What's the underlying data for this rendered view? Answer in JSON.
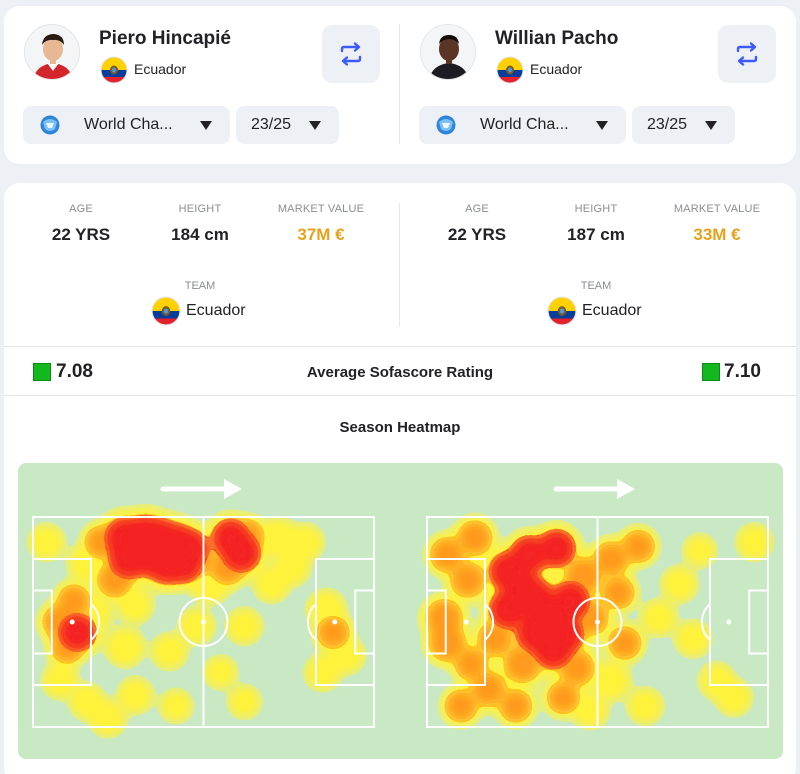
{
  "players": [
    {
      "name": "Piero Hincapié",
      "country": "Ecuador",
      "competition": "World Cha...",
      "season": "23/25",
      "age_label": "AGE",
      "age": "22 YRS",
      "height_label": "HEIGHT",
      "height": "184 cm",
      "market_value_label": "MARKET VALUE",
      "market_value": "37M €",
      "team_label": "TEAM",
      "team": "Ecuador",
      "rating": "7.08",
      "heatmap_points": [
        [
          0.27,
          0.1,
          1.0
        ],
        [
          0.33,
          0.09,
          1.0
        ],
        [
          0.37,
          0.1,
          0.9
        ],
        [
          0.42,
          0.13,
          1.0
        ],
        [
          0.46,
          0.15,
          0.8
        ],
        [
          0.28,
          0.2,
          0.9
        ],
        [
          0.33,
          0.18,
          1.0
        ],
        [
          0.39,
          0.22,
          1.0
        ],
        [
          0.44,
          0.22,
          0.9
        ],
        [
          0.48,
          0.2,
          0.6
        ],
        [
          0.58,
          0.1,
          0.8
        ],
        [
          0.61,
          0.17,
          0.9
        ],
        [
          0.57,
          0.24,
          0.6
        ],
        [
          0.63,
          0.09,
          0.5
        ],
        [
          0.2,
          0.12,
          0.5
        ],
        [
          0.16,
          0.22,
          0.4
        ],
        [
          0.24,
          0.3,
          0.6
        ],
        [
          0.52,
          0.32,
          0.4
        ],
        [
          0.72,
          0.1,
          0.4
        ],
        [
          0.8,
          0.12,
          0.3
        ],
        [
          0.12,
          0.4,
          0.5
        ],
        [
          0.08,
          0.5,
          0.6
        ],
        [
          0.13,
          0.55,
          0.8
        ],
        [
          0.1,
          0.62,
          0.5
        ],
        [
          0.18,
          0.46,
          0.3
        ],
        [
          0.3,
          0.42,
          0.3
        ],
        [
          0.27,
          0.62,
          0.4
        ],
        [
          0.4,
          0.64,
          0.3
        ],
        [
          0.48,
          0.52,
          0.3
        ],
        [
          0.86,
          0.44,
          0.4
        ],
        [
          0.88,
          0.55,
          0.5
        ],
        [
          0.92,
          0.66,
          0.3
        ],
        [
          0.85,
          0.74,
          0.3
        ],
        [
          0.3,
          0.85,
          0.3
        ],
        [
          0.16,
          0.88,
          0.3
        ],
        [
          0.22,
          0.96,
          0.3
        ],
        [
          0.08,
          0.78,
          0.3
        ],
        [
          0.55,
          0.74,
          0.2
        ],
        [
          0.62,
          0.52,
          0.3
        ],
        [
          0.7,
          0.32,
          0.3
        ],
        [
          0.04,
          0.12,
          0.3
        ],
        [
          0.76,
          0.24,
          0.3
        ],
        [
          0.62,
          0.88,
          0.2
        ],
        [
          0.42,
          0.9,
          0.2
        ]
      ]
    },
    {
      "name": "Willian Pacho",
      "country": "Ecuador",
      "competition": "World Cha...",
      "season": "23/25",
      "age_label": "AGE",
      "age": "22 YRS",
      "height_label": "HEIGHT",
      "height": "187 cm",
      "market_value_label": "MARKET VALUE",
      "market_value": "33M €",
      "team_label": "TEAM",
      "team": "Ecuador",
      "rating": "7.10",
      "heatmap_points": [
        [
          0.24,
          0.26,
          0.9
        ],
        [
          0.28,
          0.34,
          1.0
        ],
        [
          0.32,
          0.4,
          1.0
        ],
        [
          0.36,
          0.47,
          1.0
        ],
        [
          0.32,
          0.55,
          1.0
        ],
        [
          0.37,
          0.63,
          0.9
        ],
        [
          0.4,
          0.56,
          1.0
        ],
        [
          0.42,
          0.4,
          0.9
        ],
        [
          0.3,
          0.18,
          0.8
        ],
        [
          0.38,
          0.15,
          0.8
        ],
        [
          0.24,
          0.44,
          0.9
        ],
        [
          0.28,
          0.7,
          0.7
        ],
        [
          0.46,
          0.28,
          0.7
        ],
        [
          0.48,
          0.48,
          0.6
        ],
        [
          0.44,
          0.72,
          0.6
        ],
        [
          0.06,
          0.18,
          0.6
        ],
        [
          0.14,
          0.1,
          0.6
        ],
        [
          0.12,
          0.3,
          0.6
        ],
        [
          0.05,
          0.48,
          0.7
        ],
        [
          0.06,
          0.6,
          0.7
        ],
        [
          0.13,
          0.7,
          0.5
        ],
        [
          0.18,
          0.82,
          0.6
        ],
        [
          0.1,
          0.9,
          0.5
        ],
        [
          0.26,
          0.9,
          0.5
        ],
        [
          0.4,
          0.86,
          0.5
        ],
        [
          0.54,
          0.2,
          0.6
        ],
        [
          0.56,
          0.36,
          0.5
        ],
        [
          0.62,
          0.14,
          0.5
        ],
        [
          0.58,
          0.6,
          0.5
        ],
        [
          0.54,
          0.78,
          0.4
        ],
        [
          0.68,
          0.48,
          0.3
        ],
        [
          0.74,
          0.32,
          0.3
        ],
        [
          0.78,
          0.58,
          0.3
        ],
        [
          0.85,
          0.78,
          0.3
        ],
        [
          0.9,
          0.86,
          0.3
        ],
        [
          0.96,
          0.12,
          0.3
        ],
        [
          0.8,
          0.16,
          0.2
        ],
        [
          0.64,
          0.9,
          0.3
        ],
        [
          0.2,
          0.58,
          0.6
        ],
        [
          0.48,
          0.92,
          0.3
        ]
      ]
    }
  ],
  "rating_title": "Average Sofascore Rating",
  "heatmap_title": "Season Heatmap",
  "colors": {
    "pitch": "#c9e8c4",
    "accent_money": "#e8a21c",
    "rating": "#13b81e",
    "swap_icon": "#3d5afe",
    "heat_hot": "#f42020",
    "heat_mid": "#ff9a1a",
    "heat_cool": "#fff23a"
  },
  "icons": {
    "swap": "swap-arrows-icon",
    "competition": "world-championship-icon",
    "caret": "caret-down-icon",
    "direction": "arrow-right-icon",
    "flag": "ecuador-flag-icon"
  }
}
